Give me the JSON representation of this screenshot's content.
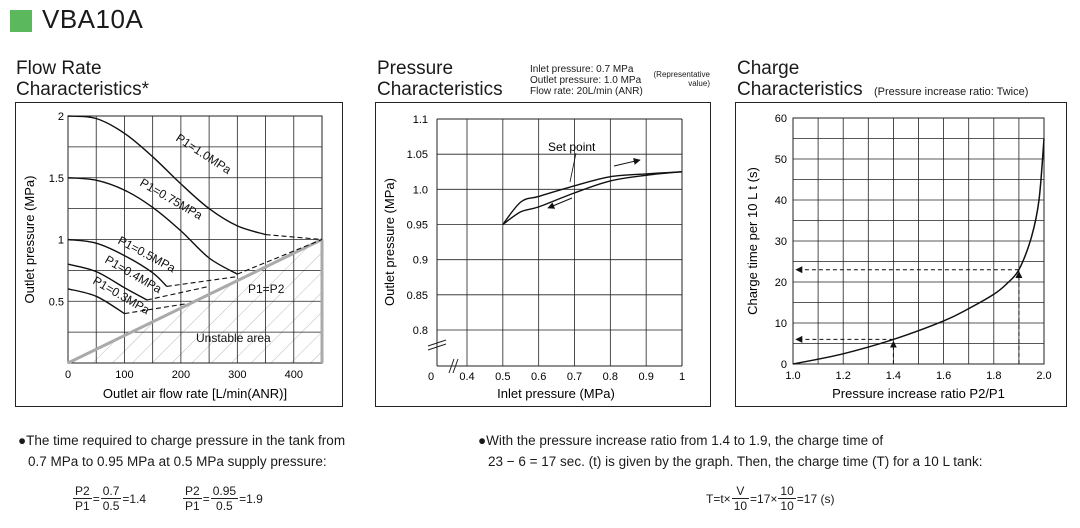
{
  "header": {
    "title": "VBA10A",
    "accent_color": "#5cb85c"
  },
  "chart_data": [
    {
      "type": "line",
      "title_line1": "Flow Rate",
      "title_line2": "Characteristics*",
      "xlabel": "Outlet air flow rate [L/min(ANR)]",
      "ylabel": "Outlet pressure (MPa)",
      "xlim": [
        0,
        450
      ],
      "ylim": [
        0,
        2
      ],
      "xticks": [
        0,
        100,
        200,
        300,
        400
      ],
      "yticks": [
        0.5,
        1,
        1.5,
        2
      ],
      "grid": true,
      "series": [
        {
          "name": "P1=1.0MPa",
          "x": [
            0,
            50,
            100,
            150,
            200,
            250,
            300,
            350
          ],
          "y": [
            2.0,
            1.98,
            1.86,
            1.67,
            1.45,
            1.25,
            1.11,
            1.04
          ]
        },
        {
          "name": "P1=0.75MPa",
          "x": [
            0,
            50,
            100,
            150,
            200,
            250,
            300
          ],
          "y": [
            1.5,
            1.48,
            1.4,
            1.26,
            1.07,
            0.85,
            0.72
          ]
        },
        {
          "name": "P1=0.5MPa",
          "x": [
            0,
            50,
            100,
            150,
            175
          ],
          "y": [
            1.0,
            0.97,
            0.87,
            0.73,
            0.62
          ]
        },
        {
          "name": "P1=0.4MPa",
          "x": [
            0,
            50,
            100,
            140
          ],
          "y": [
            0.8,
            0.74,
            0.61,
            0.51
          ]
        },
        {
          "name": "P1=0.3MPa",
          "x": [
            0,
            50,
            100
          ],
          "y": [
            0.6,
            0.54,
            0.4
          ]
        }
      ],
      "dashed_extensions": [
        {
          "x": [
            350,
            450
          ],
          "y": [
            1.04,
            1.0
          ]
        },
        {
          "x": [
            300,
            450
          ],
          "y": [
            0.72,
            1.0
          ]
        },
        {
          "x": [
            175,
            300
          ],
          "y": [
            0.62,
            0.7
          ]
        },
        {
          "x": [
            140,
            250
          ],
          "y": [
            0.51,
            0.62
          ]
        },
        {
          "x": [
            100,
            210
          ],
          "y": [
            0.4,
            0.48
          ]
        }
      ],
      "boundary_line": {
        "label": "P1=P2",
        "x": [
          0,
          450
        ],
        "y": [
          0,
          1.0
        ]
      },
      "region_label": "Unstable area"
    },
    {
      "type": "line",
      "title_line1": "Pressure",
      "title_line2": "Characteristics",
      "conditions": [
        "Inlet pressure: 0.7 MPa",
        "Outlet pressure: 1.0 MPa",
        "Flow rate: 20L/min (ANR)"
      ],
      "conditions_note": [
        "(Representative",
        "value)"
      ],
      "xlabel": "Inlet pressure (MPa)",
      "ylabel": "Outlet pressure (MPa)",
      "xlim": [
        0.4,
        1.0
      ],
      "ylim": [
        0.8,
        1.1
      ],
      "xticks": [
        "0",
        "0.4",
        "0.5",
        "0.6",
        "0.7",
        "0.8",
        "0.9",
        "1"
      ],
      "yticks": [
        "0.8",
        "0.85",
        "0.9",
        "0.95",
        "1.0",
        "1.05",
        "1.1"
      ],
      "grid": true,
      "series": [
        {
          "x": [
            0.5,
            0.55,
            0.6,
            0.7,
            0.8,
            0.9,
            1.0
          ],
          "y": [
            0.95,
            0.982,
            0.99,
            1.005,
            1.018,
            1.022,
            1.025
          ]
        },
        {
          "x": [
            0.5,
            0.55,
            0.6,
            0.7,
            0.8,
            0.9,
            1.0
          ],
          "y": [
            0.95,
            0.968,
            0.975,
            0.995,
            1.012,
            1.02,
            1.025
          ]
        }
      ],
      "annotation": "Set point"
    },
    {
      "type": "line",
      "title_line1": "Charge",
      "title_line2": "Characteristics",
      "subtitle": "(Pressure increase ratio: Twice)",
      "xlabel": "Pressure increase ratio P2/P1",
      "ylabel": "Charge time per 10 L t (s)",
      "xlim": [
        1.0,
        2.0
      ],
      "ylim": [
        0,
        60
      ],
      "xticks": [
        "1.0",
        "1.2",
        "1.4",
        "1.6",
        "1.8",
        "2.0"
      ],
      "yticks": [
        "0",
        "10",
        "20",
        "30",
        "40",
        "50",
        "60"
      ],
      "grid": true,
      "series": [
        {
          "x": [
            1.0,
            1.2,
            1.4,
            1.6,
            1.7,
            1.8,
            1.85,
            1.9,
            1.95,
            1.98,
            2.0
          ],
          "y": [
            0,
            2.5,
            6,
            10.5,
            13.5,
            17,
            19.5,
            23,
            31,
            40,
            55
          ]
        }
      ],
      "reference_points": [
        {
          "x": 1.4,
          "y": 6
        },
        {
          "x": 1.9,
          "y": 23
        }
      ]
    }
  ],
  "notes": {
    "left": {
      "line1": "The time required to charge pressure in the tank from",
      "line2": "0.7 MPa to 0.95 MPa at 0.5 MPa supply pressure:",
      "f1": {
        "num1": "P2",
        "den1": "P1",
        "eq": "=",
        "num2": "0.7",
        "den2": "0.5",
        "result": "=1.4"
      },
      "f2": {
        "num1": "P2",
        "den1": "P1",
        "eq": "=",
        "num2": "0.95",
        "den2": "0.5",
        "result": "=1.9"
      }
    },
    "right": {
      "line1": "With the pressure increase ratio from 1.4 to 1.9, the charge time of",
      "line2": "23 − 6 = 17 sec. (t) is given by the graph. Then, the charge time (T) for a 10 L tank:",
      "f": {
        "lead": "T=t×",
        "num1": "V",
        "den1": "10",
        "mid": "=17×",
        "num2": "10",
        "den2": "10",
        "tail": "=17 (s)"
      }
    },
    "bullet": "●"
  }
}
